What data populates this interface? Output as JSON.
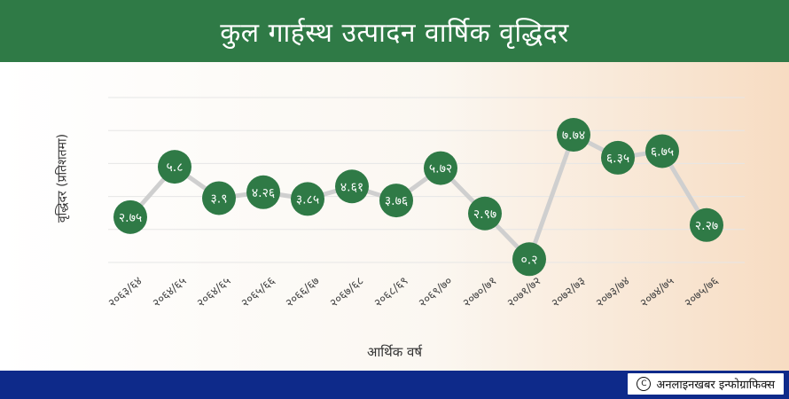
{
  "header": {
    "title": "कुल गार्हस्थ उत्पादन वार्षिक वृद्धिदर"
  },
  "chart_data": {
    "type": "line",
    "title": "कुल गार्हस्थ उत्पादन वार्षिक वृद्धिदर",
    "xlabel": "आर्थिक वर्ष",
    "ylabel": "वृद्धिदर (प्रतिशतमा)",
    "ylim": [
      0,
      10
    ],
    "grid": true,
    "categories": [
      "२०६३/६४",
      "२०६४/६५",
      "२०६४/६५",
      "२०६५/६६",
      "२०६६/६७",
      "२०६७/६८",
      "२०६८/६९",
      "२०६९/७०",
      "२०७०/७१",
      "२०७१/७२",
      "२०७२/७३",
      "२०७३/७४",
      "२०७४/७५",
      "२०७५/७६"
    ],
    "series": [
      {
        "values": [
          2.75,
          5.8,
          3.9,
          4.26,
          3.85,
          4.61,
          3.76,
          5.72,
          2.97,
          0.2,
          7.74,
          6.35,
          6.75,
          2.27
        ],
        "labels": [
          "२.७५",
          "५.८",
          "३.९",
          "४.२६",
          "३.८५",
          "४.६१",
          "३.७६",
          "५.७२",
          "२.९७",
          "०.२",
          "७.७४",
          "६.३५",
          "६.७५",
          "२.२७"
        ]
      }
    ],
    "colors": {
      "line": "#cfcfcf",
      "marker": "#2f7a46",
      "marker_text": "#ffffff"
    }
  },
  "footer": {
    "credit": "अनलाइनखबर इन्फोग्राफिक्स",
    "credit_icon": "copyright-icon"
  }
}
